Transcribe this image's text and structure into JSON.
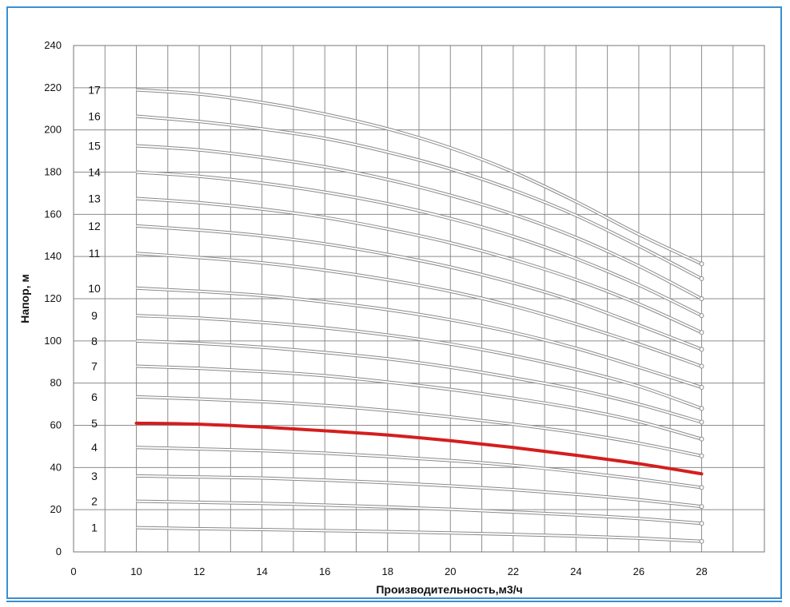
{
  "chart_data": {
    "type": "line",
    "title": "",
    "xlabel": "Производительность,м3/ч",
    "ylabel": "Напор, м",
    "xlim": [
      8,
      30
    ],
    "ylim": [
      0,
      240
    ],
    "x_ticks": [
      10,
      12,
      14,
      16,
      18,
      20,
      22,
      24,
      26,
      28
    ],
    "x_origin_label": "0",
    "y_ticks": [
      0,
      20,
      40,
      60,
      80,
      100,
      120,
      140,
      160,
      180,
      200,
      220,
      240
    ],
    "grid": true,
    "highlight_color": "#d41e1e",
    "curve_color": "#8a8a8a",
    "x": [
      10,
      12,
      14,
      16,
      18,
      20,
      22,
      24,
      26,
      28
    ],
    "series": [
      {
        "name": "1",
        "values": [
          11.5,
          11.0,
          10.6,
          10.1,
          9.6,
          9.0,
          8.3,
          7.5,
          6.5,
          5.0
        ]
      },
      {
        "name": "2",
        "values": [
          24.0,
          23.5,
          23.0,
          22.2,
          21.3,
          20.2,
          18.9,
          17.5,
          15.8,
          13.5
        ]
      },
      {
        "name": "3",
        "values": [
          36.0,
          35.5,
          35.0,
          34.0,
          32.8,
          31.3,
          29.5,
          27.3,
          24.7,
          21.5
        ]
      },
      {
        "name": "4",
        "values": [
          49.5,
          48.8,
          48.0,
          46.8,
          45.2,
          43.3,
          41.0,
          38.0,
          34.5,
          30.5
        ]
      },
      {
        "name": "5",
        "values": [
          61.0,
          60.5,
          59.2,
          57.4,
          55.4,
          52.7,
          49.5,
          45.8,
          41.8,
          37.0
        ],
        "highlight": true
      },
      {
        "name": "6",
        "values": [
          73.5,
          72.5,
          71.2,
          69.4,
          67.0,
          64.0,
          60.5,
          56.5,
          51.5,
          45.5
        ]
      },
      {
        "name": "7",
        "values": [
          88.0,
          87.0,
          85.5,
          83.5,
          80.5,
          77.0,
          72.8,
          68.0,
          61.8,
          53.5
        ]
      },
      {
        "name": "8",
        "values": [
          100.0,
          98.8,
          97.0,
          94.5,
          91.5,
          87.5,
          82.5,
          77.0,
          70.0,
          61.5
        ]
      },
      {
        "name": "9",
        "values": [
          112.0,
          110.8,
          108.8,
          106.2,
          102.8,
          98.5,
          93.0,
          86.5,
          78.5,
          68.0
        ]
      },
      {
        "name": "10",
        "values": [
          125.0,
          123.5,
          121.5,
          118.5,
          114.8,
          110.0,
          104.0,
          96.5,
          87.5,
          78.0
        ]
      },
      {
        "name": "11",
        "values": [
          141.5,
          139.5,
          137.0,
          133.5,
          129.0,
          123.5,
          116.5,
          108.0,
          98.5,
          88.0
        ]
      },
      {
        "name": "12",
        "values": [
          154.5,
          152.5,
          149.8,
          146.0,
          141.0,
          135.0,
          127.5,
          118.5,
          107.5,
          96.0
        ]
      },
      {
        "name": "13",
        "values": [
          167.5,
          165.5,
          162.5,
          158.5,
          153.0,
          146.5,
          138.5,
          129.0,
          117.5,
          104.0
        ]
      },
      {
        "name": "14",
        "values": [
          180.0,
          178.0,
          174.8,
          170.5,
          165.0,
          158.0,
          149.5,
          139.0,
          126.5,
          112.0
        ]
      },
      {
        "name": "15",
        "values": [
          192.5,
          190.5,
          187.0,
          182.5,
          176.5,
          169.0,
          160.0,
          149.0,
          135.5,
          120.0
        ]
      },
      {
        "name": "16",
        "values": [
          206.5,
          204.0,
          200.5,
          196.0,
          189.5,
          181.5,
          171.5,
          159.5,
          145.0,
          129.5
        ]
      },
      {
        "name": "17",
        "values": [
          219.0,
          217.0,
          213.0,
          207.5,
          200.5,
          191.5,
          180.0,
          166.0,
          150.5,
          136.5
        ]
      }
    ]
  }
}
